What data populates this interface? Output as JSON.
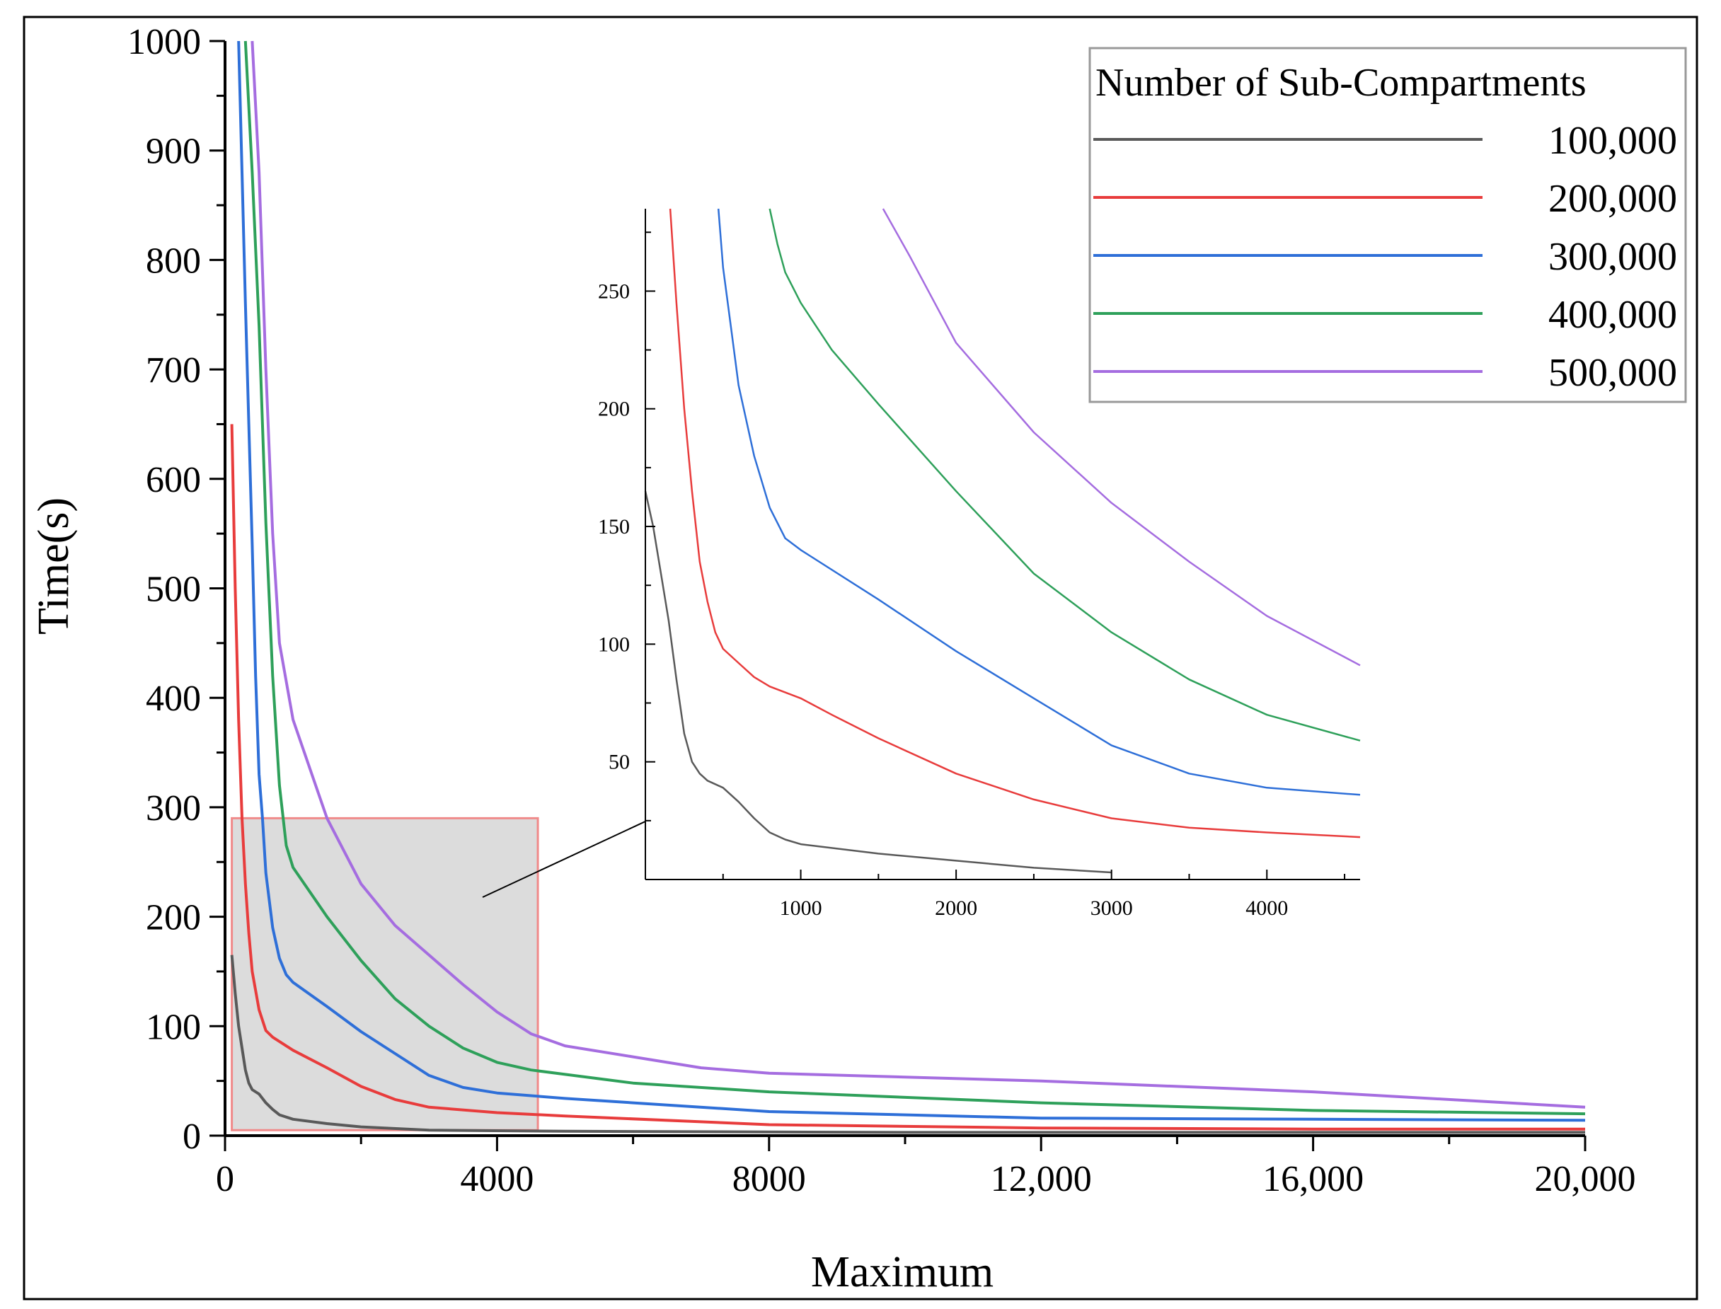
{
  "chart_data": [
    {
      "type": "line",
      "role": "main",
      "xlabel": "Maximum",
      "ylabel": "Time(s)",
      "xlim": [
        0,
        20000
      ],
      "ylim": [
        0,
        1000
      ],
      "x_ticks": [
        0,
        4000,
        8000,
        12000,
        16000,
        20000
      ],
      "x_tick_labels": [
        "0",
        "4000",
        "8000",
        "12,000",
        "16,000",
        "20,000"
      ],
      "x_minor_step": 2000,
      "y_ticks": [
        0,
        100,
        200,
        300,
        400,
        500,
        600,
        700,
        800,
        900,
        1000
      ],
      "y_tick_labels": [
        "0",
        "100",
        "200",
        "300",
        "400",
        "500",
        "600",
        "700",
        "800",
        "900",
        "1000"
      ],
      "y_minor_step": 50,
      "legend": {
        "title": "Number of Sub-Compartments",
        "position": "top-right"
      },
      "zoom_region": {
        "x": [
          100,
          4600
        ],
        "y": [
          5,
          290
        ]
      },
      "series": [
        {
          "name": "100,000",
          "color": "#595959",
          "points": [
            [
              100,
              165
            ],
            [
              150,
              130
            ],
            [
              200,
              100
            ],
            [
              250,
              80
            ],
            [
              300,
              60
            ],
            [
              350,
              48
            ],
            [
              400,
              42
            ],
            [
              500,
              38
            ],
            [
              600,
              30
            ],
            [
              700,
              24
            ],
            [
              800,
              19
            ],
            [
              1000,
              15
            ],
            [
              1500,
              11
            ],
            [
              2000,
              8
            ],
            [
              3000,
              5
            ],
            [
              5000,
              4
            ],
            [
              10000,
              3
            ],
            [
              20000,
              3
            ]
          ]
        },
        {
          "name": "200,000",
          "color": "#e83c3c",
          "points": [
            [
              100,
              650
            ],
            [
              150,
              500
            ],
            [
              200,
              380
            ],
            [
              250,
              290
            ],
            [
              300,
              230
            ],
            [
              350,
              185
            ],
            [
              400,
              150
            ],
            [
              500,
              115
            ],
            [
              600,
              96
            ],
            [
              700,
              90
            ],
            [
              1000,
              78
            ],
            [
              1500,
              62
            ],
            [
              2000,
              45
            ],
            [
              2500,
              33
            ],
            [
              3000,
              26
            ],
            [
              4000,
              21
            ],
            [
              5000,
              18
            ],
            [
              8000,
              10
            ],
            [
              12000,
              7
            ],
            [
              16000,
              6
            ],
            [
              20000,
              6
            ]
          ]
        },
        {
          "name": "300,000",
          "color": "#2e6fd8",
          "points": [
            [
              200,
              1000
            ],
            [
              250,
              880
            ],
            [
              300,
              760
            ],
            [
              350,
              650
            ],
            [
              400,
              540
            ],
            [
              450,
              420
            ],
            [
              500,
              330
            ],
            [
              550,
              290
            ],
            [
              600,
              240
            ],
            [
              700,
              190
            ],
            [
              800,
              162
            ],
            [
              900,
              147
            ],
            [
              1000,
              140
            ],
            [
              1500,
              118
            ],
            [
              2000,
              95
            ],
            [
              2500,
              75
            ],
            [
              3000,
              55
            ],
            [
              3500,
              44
            ],
            [
              4000,
              39
            ],
            [
              5000,
              34
            ],
            [
              6000,
              30
            ],
            [
              8000,
              22
            ],
            [
              12000,
              16
            ],
            [
              16000,
              15
            ],
            [
              20000,
              14
            ]
          ]
        },
        {
          "name": "400,000",
          "color": "#2ea05a",
          "points": [
            [
              300,
              1000
            ],
            [
              400,
              880
            ],
            [
              500,
              740
            ],
            [
              600,
              560
            ],
            [
              700,
              420
            ],
            [
              800,
              320
            ],
            [
              900,
              265
            ],
            [
              1000,
              245
            ],
            [
              1500,
              200
            ],
            [
              2000,
              160
            ],
            [
              2500,
              125
            ],
            [
              3000,
              100
            ],
            [
              3500,
              80
            ],
            [
              4000,
              67
            ],
            [
              4500,
              60
            ],
            [
              5000,
              56
            ],
            [
              6000,
              48
            ],
            [
              8000,
              40
            ],
            [
              12000,
              30
            ],
            [
              16000,
              23
            ],
            [
              20000,
              20
            ]
          ]
        },
        {
          "name": "500,000",
          "color": "#a56de0",
          "points": [
            [
              400,
              1000
            ],
            [
              500,
              880
            ],
            [
              600,
              700
            ],
            [
              700,
              550
            ],
            [
              800,
              450
            ],
            [
              1000,
              380
            ],
            [
              1500,
              290
            ],
            [
              2000,
              230
            ],
            [
              2500,
              192
            ],
            [
              3000,
              165
            ],
            [
              3500,
              138
            ],
            [
              4000,
              113
            ],
            [
              4500,
              93
            ],
            [
              5000,
              82
            ],
            [
              6000,
              72
            ],
            [
              7000,
              62
            ],
            [
              8000,
              57
            ],
            [
              12000,
              50
            ],
            [
              16000,
              40
            ],
            [
              20000,
              26
            ]
          ]
        }
      ]
    },
    {
      "type": "line",
      "role": "inset",
      "xlim": [
        0,
        4600
      ],
      "ylim": [
        0,
        285
      ],
      "x_ticks": [
        1000,
        2000,
        3000,
        4000
      ],
      "x_tick_labels": [
        "1000",
        "2000",
        "3000",
        "4000"
      ],
      "y_ticks": [
        50,
        100,
        150,
        200,
        250
      ],
      "y_tick_labels": [
        "50",
        "100",
        "150",
        "200",
        "250"
      ],
      "series": [
        {
          "name": "100,000",
          "color": "#595959",
          "points": [
            [
              0,
              165
            ],
            [
              50,
              150
            ],
            [
              100,
              130
            ],
            [
              150,
              110
            ],
            [
              200,
              85
            ],
            [
              250,
              62
            ],
            [
              300,
              50
            ],
            [
              350,
              45
            ],
            [
              400,
              42
            ],
            [
              500,
              39
            ],
            [
              600,
              33
            ],
            [
              700,
              26
            ],
            [
              800,
              20
            ],
            [
              900,
              17
            ],
            [
              1000,
              15
            ],
            [
              1500,
              11
            ],
            [
              2000,
              8
            ],
            [
              2500,
              5
            ],
            [
              3000,
              3
            ]
          ]
        },
        {
          "name": "200,000",
          "color": "#e83c3c",
          "points": [
            [
              160,
              285
            ],
            [
              200,
              245
            ],
            [
              250,
              200
            ],
            [
              300,
              165
            ],
            [
              350,
              135
            ],
            [
              400,
              118
            ],
            [
              450,
              105
            ],
            [
              500,
              98
            ],
            [
              600,
              92
            ],
            [
              700,
              86
            ],
            [
              800,
              82
            ],
            [
              1000,
              77
            ],
            [
              1200,
              70
            ],
            [
              1500,
              60
            ],
            [
              2000,
              45
            ],
            [
              2500,
              34
            ],
            [
              3000,
              26
            ],
            [
              3500,
              22
            ],
            [
              4000,
              20
            ],
            [
              4600,
              18
            ]
          ]
        },
        {
          "name": "300,000",
          "color": "#2e6fd8",
          "points": [
            [
              470,
              285
            ],
            [
              500,
              260
            ],
            [
              550,
              235
            ],
            [
              600,
              210
            ],
            [
              700,
              180
            ],
            [
              800,
              158
            ],
            [
              900,
              145
            ],
            [
              1000,
              140
            ],
            [
              1500,
              119
            ],
            [
              2000,
              97
            ],
            [
              2500,
              77
            ],
            [
              3000,
              57
            ],
            [
              3500,
              45
            ],
            [
              4000,
              39
            ],
            [
              4600,
              36
            ]
          ]
        },
        {
          "name": "400,000",
          "color": "#2ea05a",
          "points": [
            [
              800,
              285
            ],
            [
              850,
              270
            ],
            [
              900,
              258
            ],
            [
              1000,
              245
            ],
            [
              1200,
              225
            ],
            [
              1500,
              202
            ],
            [
              2000,
              165
            ],
            [
              2500,
              130
            ],
            [
              3000,
              105
            ],
            [
              3500,
              85
            ],
            [
              4000,
              70
            ],
            [
              4600,
              59
            ]
          ]
        },
        {
          "name": "500,000",
          "color": "#a56de0",
          "points": [
            [
              1530,
              285
            ],
            [
              1700,
              265
            ],
            [
              2000,
              228
            ],
            [
              2500,
              190
            ],
            [
              3000,
              160
            ],
            [
              3500,
              135
            ],
            [
              4000,
              112
            ],
            [
              4600,
              91
            ]
          ]
        }
      ]
    }
  ]
}
